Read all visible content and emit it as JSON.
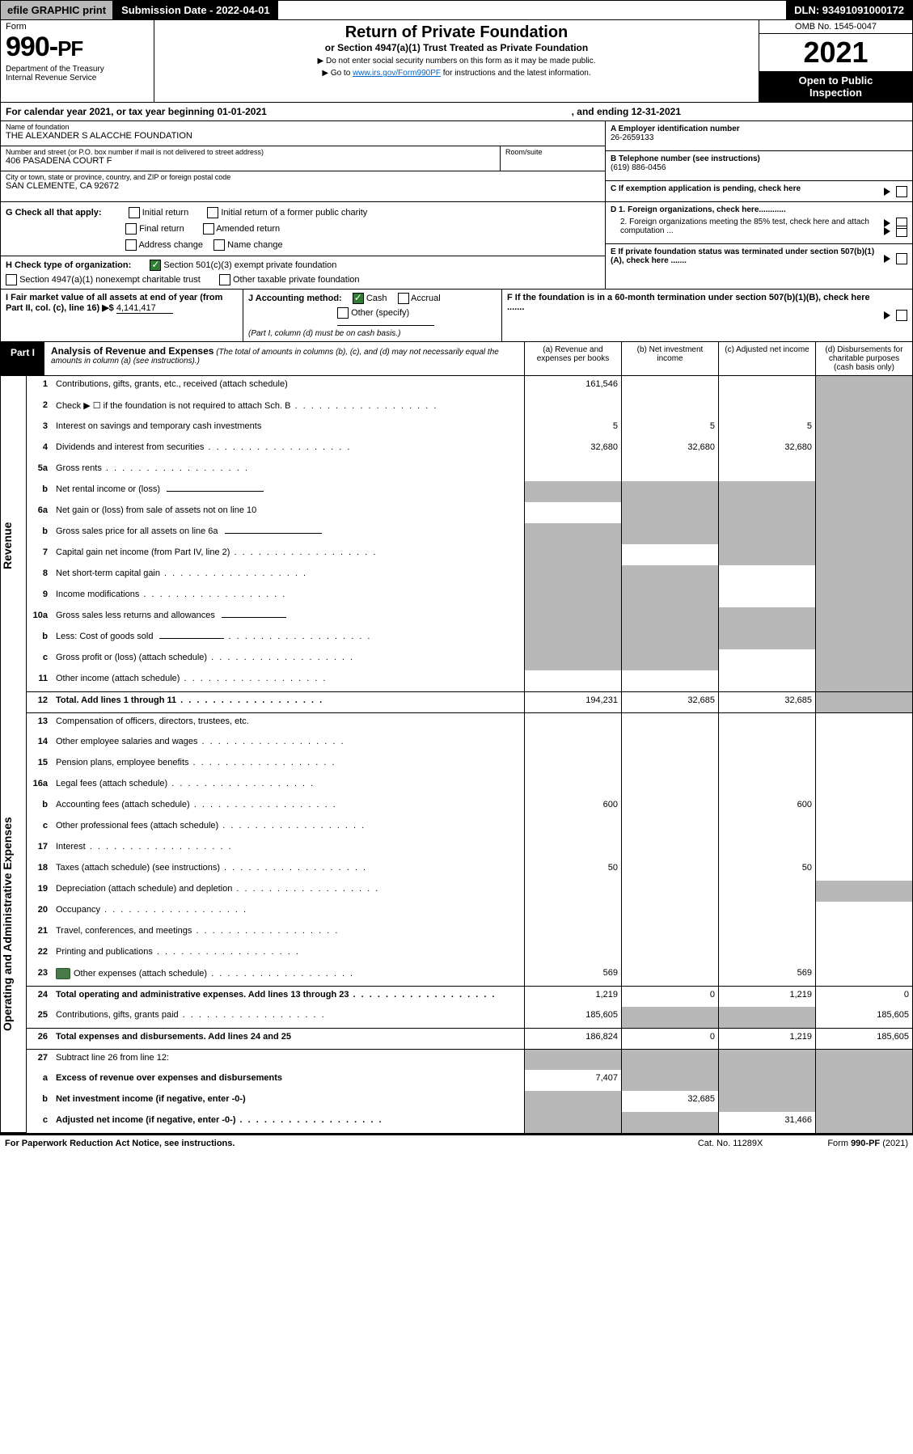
{
  "topbar": {
    "efile": "efile GRAPHIC print",
    "submission": "Submission Date - 2022-04-01",
    "dln": "DLN: 93491091000172"
  },
  "header": {
    "form_label": "Form",
    "form_num": "990-PF",
    "dept": "Department of the Treasury\nInternal Revenue Service",
    "title": "Return of Private Foundation",
    "subtitle": "or Section 4947(a)(1) Trust Treated as Private Foundation",
    "bullet1": "▶ Do not enter social security numbers on this form as it may be made public.",
    "bullet2_pre": "▶ Go to ",
    "bullet2_link": "www.irs.gov/Form990PF",
    "bullet2_post": " for instructions and the latest information.",
    "omb": "OMB No. 1545-0047",
    "year": "2021",
    "open": "Open to Public\nInspection"
  },
  "calyear": {
    "text": "For calendar year 2021, or tax year beginning 01-01-2021",
    "end": ", and ending 12-31-2021"
  },
  "info": {
    "name_label": "Name of foundation",
    "name": "THE ALEXANDER S ALACCHE FOUNDATION",
    "addr_label": "Number and street (or P.O. box number if mail is not delivered to street address)",
    "addr": "406 PASADENA COURT F",
    "room_label": "Room/suite",
    "city_label": "City or town, state or province, country, and ZIP or foreign postal code",
    "city": "SAN CLEMENTE, CA  92672",
    "a_label": "A Employer identification number",
    "a_val": "26-2659133",
    "b_label": "B Telephone number (see instructions)",
    "b_val": "(619) 886-0456",
    "c_label": "C If exemption application is pending, check here",
    "d1": "D 1. Foreign organizations, check here............",
    "d2": "2. Foreign organizations meeting the 85% test, check here and attach computation ...",
    "e": "E  If private foundation status was terminated under section 507(b)(1)(A), check here .......",
    "f": "F  If the foundation is in a 60-month termination under section 507(b)(1)(B), check here .......",
    "g_label": "G Check all that apply:",
    "g_opts": [
      "Initial return",
      "Initial return of a former public charity",
      "Final return",
      "Amended return",
      "Address change",
      "Name change"
    ],
    "h_label": "H Check type of organization:",
    "h_opts": [
      "Section 501(c)(3) exempt private foundation",
      "Section 4947(a)(1) nonexempt charitable trust",
      "Other taxable private foundation"
    ],
    "i_label": "I Fair market value of all assets at end of year (from Part II, col. (c), line 16) ▶$",
    "i_val": "4,141,417",
    "j_label": "J Accounting method:",
    "j_opts": [
      "Cash",
      "Accrual",
      "Other (specify)"
    ],
    "j_note": "(Part I, column (d) must be on cash basis.)"
  },
  "part1": {
    "tab": "Part I",
    "title": "Analysis of Revenue and Expenses",
    "note": "(The total of amounts in columns (b), (c), and (d) may not necessarily equal the amounts in column (a) (see instructions).)",
    "cols": {
      "a": "(a)   Revenue and expenses per books",
      "b": "(b)   Net investment income",
      "c": "(c)   Adjusted net income",
      "d": "(d)   Disbursements for charitable purposes (cash basis only)"
    }
  },
  "sides": {
    "rev": "Revenue",
    "ope": "Operating and Administrative Expenses"
  },
  "lines": [
    {
      "n": "1",
      "t": "Contributions, gifts, grants, etc., received (attach schedule)",
      "a": "161,546",
      "b": "",
      "c": "",
      "d": "",
      "sd": true,
      "div": false
    },
    {
      "n": "2",
      "t": "Check ▶ ☐ if the foundation is not required to attach Sch. B",
      "dots": true,
      "a": "",
      "b": "",
      "c": "",
      "d": "",
      "sd": true
    },
    {
      "n": "3",
      "t": "Interest on savings and temporary cash investments",
      "a": "5",
      "b": "5",
      "c": "5",
      "d": "",
      "sd": true
    },
    {
      "n": "4",
      "t": "Dividends and interest from securities",
      "dots": true,
      "a": "32,680",
      "b": "32,680",
      "c": "32,680",
      "d": "",
      "sd": true
    },
    {
      "n": "5a",
      "t": "Gross rents",
      "dots": true,
      "a": "",
      "b": "",
      "c": "",
      "d": "",
      "sd": true
    },
    {
      "n": "b",
      "t": "Net rental income or (loss)",
      "sub": true,
      "a": "",
      "b": "",
      "c": "",
      "d": "",
      "sa": true,
      "sb": true,
      "sc": true,
      "sd": true
    },
    {
      "n": "6a",
      "t": "Net gain or (loss) from sale of assets not on line 10",
      "a": "",
      "b": "",
      "c": "",
      "d": "",
      "sb": true,
      "sc": true,
      "sd": true
    },
    {
      "n": "b",
      "t": "Gross sales price for all assets on line 6a",
      "sub": true,
      "a": "",
      "b": "",
      "c": "",
      "d": "",
      "sa": true,
      "sb": true,
      "sc": true,
      "sd": true
    },
    {
      "n": "7",
      "t": "Capital gain net income (from Part IV, line 2)",
      "dots": true,
      "a": "",
      "b": "",
      "c": "",
      "d": "",
      "sa": true,
      "sc": true,
      "sd": true
    },
    {
      "n": "8",
      "t": "Net short-term capital gain",
      "dots": true,
      "a": "",
      "b": "",
      "c": "",
      "d": "",
      "sa": true,
      "sb": true,
      "sd": true
    },
    {
      "n": "9",
      "t": "Income modifications",
      "dots": true,
      "a": "",
      "b": "",
      "c": "",
      "d": "",
      "sa": true,
      "sb": true,
      "sd": true
    },
    {
      "n": "10a",
      "t": "Gross sales less returns and allowances",
      "sub2": true,
      "a": "",
      "b": "",
      "c": "",
      "d": "",
      "sa": true,
      "sb": true,
      "sc": true,
      "sd": true
    },
    {
      "n": "b",
      "t": "Less: Cost of goods sold",
      "dots": true,
      "sub2": true,
      "a": "",
      "b": "",
      "c": "",
      "d": "",
      "sa": true,
      "sb": true,
      "sc": true,
      "sd": true
    },
    {
      "n": "c",
      "t": "Gross profit or (loss) (attach schedule)",
      "dots": true,
      "a": "",
      "b": "",
      "c": "",
      "d": "",
      "sa": true,
      "sb": true,
      "sd": true
    },
    {
      "n": "11",
      "t": "Other income (attach schedule)",
      "dots": true,
      "a": "",
      "b": "",
      "c": "",
      "d": "",
      "sd": true
    },
    {
      "n": "12",
      "t": "Total. Add lines 1 through 11",
      "dots": true,
      "bold": true,
      "a": "194,231",
      "b": "32,685",
      "c": "32,685",
      "d": "",
      "sd": true,
      "div": true
    },
    {
      "n": "13",
      "t": "Compensation of officers, directors, trustees, etc.",
      "a": "",
      "b": "",
      "c": "",
      "d": "",
      "div": true
    },
    {
      "n": "14",
      "t": "Other employee salaries and wages",
      "dots": true,
      "a": "",
      "b": "",
      "c": "",
      "d": ""
    },
    {
      "n": "15",
      "t": "Pension plans, employee benefits",
      "dots": true,
      "a": "",
      "b": "",
      "c": "",
      "d": ""
    },
    {
      "n": "16a",
      "t": "Legal fees (attach schedule)",
      "dots": true,
      "a": "",
      "b": "",
      "c": "",
      "d": ""
    },
    {
      "n": "b",
      "t": "Accounting fees (attach schedule)",
      "dots": true,
      "a": "600",
      "b": "",
      "c": "600",
      "d": ""
    },
    {
      "n": "c",
      "t": "Other professional fees (attach schedule)",
      "dots": true,
      "a": "",
      "b": "",
      "c": "",
      "d": ""
    },
    {
      "n": "17",
      "t": "Interest",
      "dots": true,
      "a": "",
      "b": "",
      "c": "",
      "d": ""
    },
    {
      "n": "18",
      "t": "Taxes (attach schedule) (see instructions)",
      "dots": true,
      "a": "50",
      "b": "",
      "c": "50",
      "d": ""
    },
    {
      "n": "19",
      "t": "Depreciation (attach schedule) and depletion",
      "dots": true,
      "a": "",
      "b": "",
      "c": "",
      "d": "",
      "sd": true
    },
    {
      "n": "20",
      "t": "Occupancy",
      "dots": true,
      "a": "",
      "b": "",
      "c": "",
      "d": ""
    },
    {
      "n": "21",
      "t": "Travel, conferences, and meetings",
      "dots": true,
      "a": "",
      "b": "",
      "c": "",
      "d": ""
    },
    {
      "n": "22",
      "t": "Printing and publications",
      "dots": true,
      "a": "",
      "b": "",
      "c": "",
      "d": ""
    },
    {
      "n": "23",
      "t": "Other expenses (attach schedule)",
      "dots": true,
      "icon": true,
      "a": "569",
      "b": "",
      "c": "569",
      "d": ""
    },
    {
      "n": "24",
      "t": "Total operating and administrative expenses. Add lines 13 through 23",
      "dots": true,
      "bold": true,
      "a": "1,219",
      "b": "0",
      "c": "1,219",
      "d": "0",
      "div": true
    },
    {
      "n": "25",
      "t": "Contributions, gifts, grants paid",
      "dots": true,
      "a": "185,605",
      "b": "",
      "c": "",
      "d": "185,605",
      "sb": true,
      "sc": true
    },
    {
      "n": "26",
      "t": "Total expenses and disbursements. Add lines 24 and 25",
      "bold": true,
      "a": "186,824",
      "b": "0",
      "c": "1,219",
      "d": "185,605",
      "div": true
    },
    {
      "n": "27",
      "t": "Subtract line 26 from line 12:",
      "a": "",
      "b": "",
      "c": "",
      "d": "",
      "sa": true,
      "sb": true,
      "sc": true,
      "sd": true,
      "div": true
    },
    {
      "n": "a",
      "t": "Excess of revenue over expenses and disbursements",
      "bold": true,
      "a": "7,407",
      "b": "",
      "c": "",
      "d": "",
      "sb": true,
      "sc": true,
      "sd": true
    },
    {
      "n": "b",
      "t": "Net investment income (if negative, enter -0-)",
      "bold": true,
      "a": "",
      "b": "32,685",
      "c": "",
      "d": "",
      "sa": true,
      "sc": true,
      "sd": true
    },
    {
      "n": "c",
      "t": "Adjusted net income (if negative, enter -0-)",
      "bold": true,
      "dots": true,
      "a": "",
      "b": "",
      "c": "31,466",
      "d": "",
      "sa": true,
      "sb": true,
      "sd": true
    }
  ],
  "footer": {
    "left": "For Paperwork Reduction Act Notice, see instructions.",
    "mid": "Cat. No. 11289X",
    "right": "Form 990-PF (2021)"
  }
}
